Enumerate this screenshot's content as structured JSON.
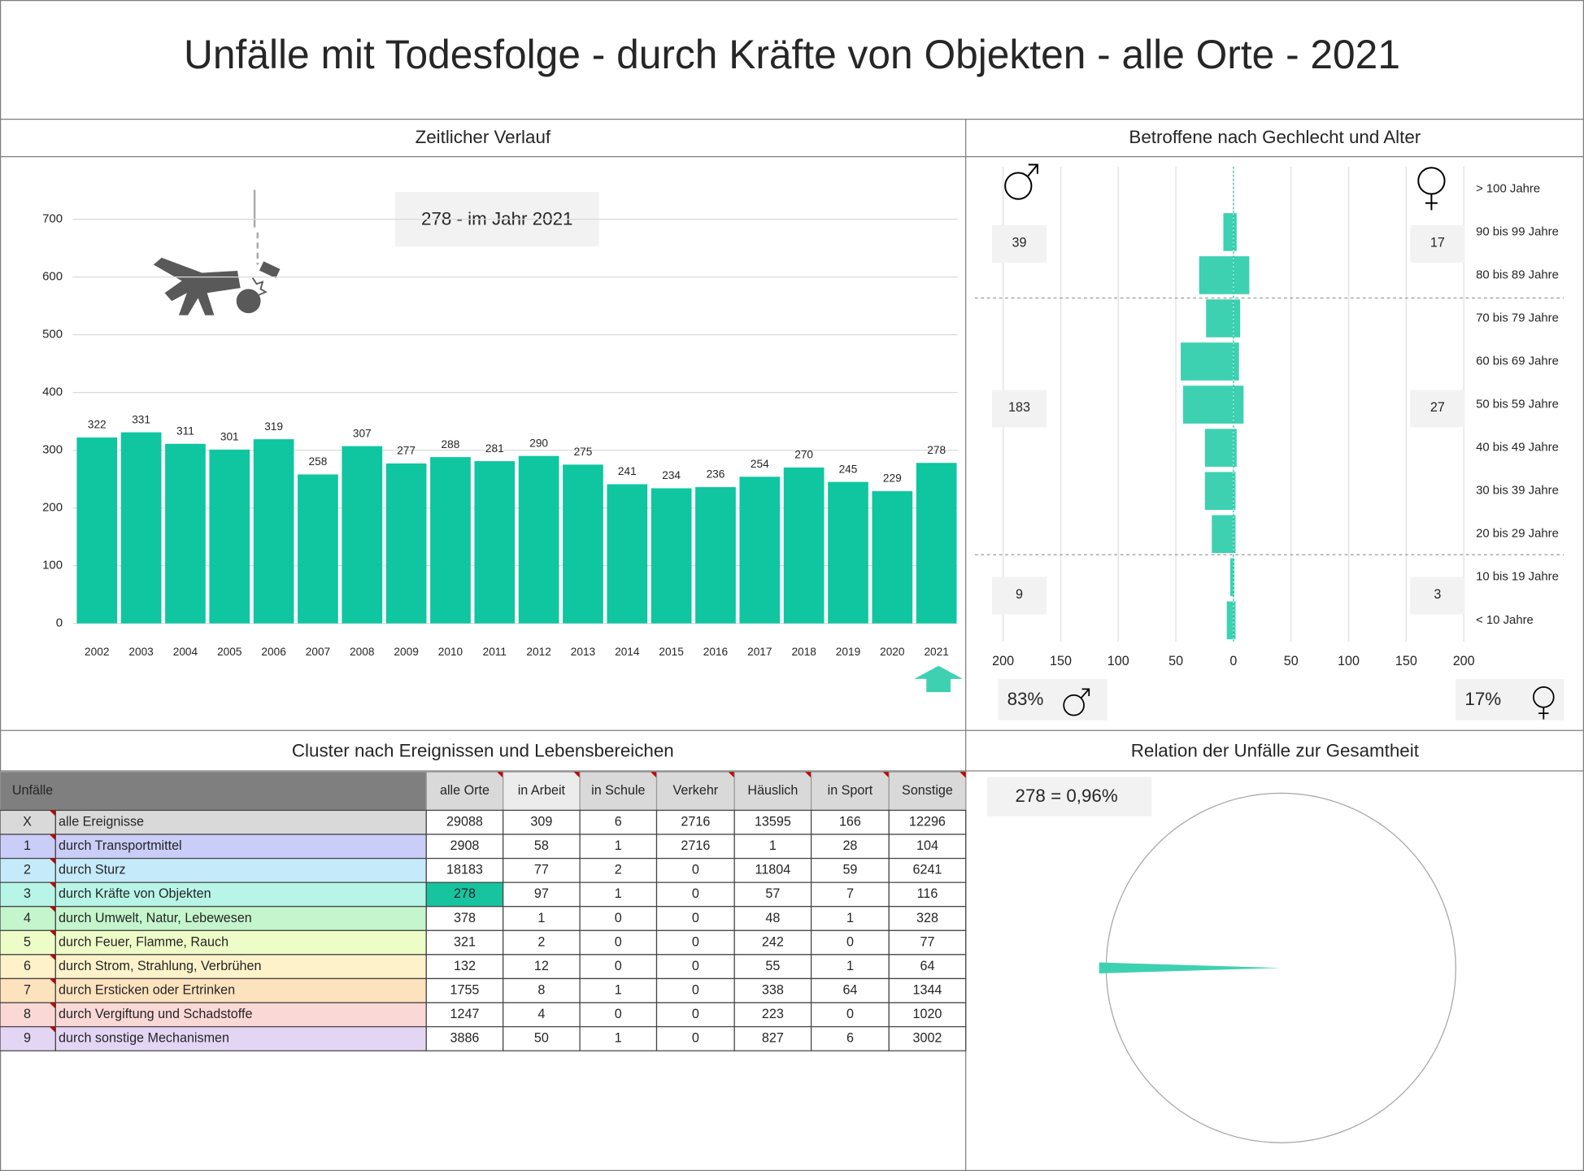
{
  "title": "Unfälle mit Todesfolge - durch Kräfte von Objekten - alle Orte - 2021",
  "chart_data": [
    {
      "type": "bar",
      "title": "Zeitlicher Verlauf",
      "annotation": "278 - im Jahr 2021",
      "color": "#0fc6a1",
      "categories": [
        "2002",
        "2003",
        "2004",
        "2005",
        "2006",
        "2007",
        "2008",
        "2009",
        "2010",
        "2011",
        "2012",
        "2013",
        "2014",
        "2015",
        "2016",
        "2017",
        "2018",
        "2019",
        "2020",
        "2021"
      ],
      "values": [
        322,
        331,
        311,
        301,
        319,
        258,
        307,
        277,
        288,
        281,
        290,
        275,
        241,
        234,
        236,
        254,
        270,
        245,
        229,
        278
      ],
      "ylim": [
        0,
        700
      ],
      "yticks": [
        0,
        100,
        200,
        300,
        400,
        500,
        600,
        700
      ],
      "grid": true
    },
    {
      "type": "pyramid",
      "title": "Betroffene nach Gechlecht und Alter",
      "categories": [
        "> 100 Jahre",
        "90 bis 99 Jahre",
        "80 bis 89 Jahre",
        "70 bis 79 Jahre",
        "60 bis 69 Jahre",
        "50 bis 59 Jahre",
        "40 bis 49 Jahre",
        "30 bis 39 Jahre",
        "20 bis 29 Jahre",
        "10 bis 19 Jahre",
        "< 10 Jahre"
      ],
      "series": [
        {
          "color": "#3dd1b1",
          "values": [
            0,
            9,
            30,
            24,
            46,
            44,
            25,
            25,
            19,
            3,
            6
          ]
        },
        {
          "color": "#3dd1b1",
          "values": [
            0,
            3,
            14,
            6,
            5,
            9,
            3,
            2,
            2,
            1,
            2
          ]
        }
      ],
      "xlim": [
        -200,
        200
      ],
      "xticks": [
        {
          "value": -200,
          "label": "200"
        },
        {
          "value": -150,
          "label": "150"
        },
        {
          "value": -100,
          "label": "100"
        },
        {
          "value": -50,
          "label": "50"
        },
        0,
        50,
        100,
        150,
        200
      ],
      "grid": true,
      "male_totals": [
        39,
        183,
        9
      ],
      "female_totals": [
        17,
        27,
        3
      ],
      "male_share": "83%",
      "female_share": "17%"
    },
    {
      "type": "pie",
      "title": "Relation der Unfälle zur Gesamtheit",
      "label": "278 =  0,96%",
      "color": "#3dd1b1"
    }
  ],
  "table": {
    "title": "Cluster nach Ereignissen und Lebensbereichen",
    "header": [
      "Unfälle",
      "alle Orte",
      "in Arbeit",
      "in Schule",
      "Verkehr",
      "Häuslich",
      "in Sport",
      "Sonstige"
    ],
    "highlight": {
      "row": 3,
      "column": 0,
      "color": "#17c4a0"
    },
    "rows": [
      {
        "code": "X",
        "label": "alle Ereignisse",
        "color": "#d9d9d9",
        "values": [
          29088,
          309,
          6,
          2716,
          13595,
          166,
          12296
        ]
      },
      {
        "code": "1",
        "label": "durch Transportmittel",
        "color": "#c9cdf7",
        "values": [
          2908,
          58,
          1,
          2716,
          1,
          28,
          104
        ]
      },
      {
        "code": "2",
        "label": "durch Sturz",
        "color": "#c5ebfa",
        "values": [
          18183,
          77,
          2,
          0,
          11804,
          59,
          6241
        ]
      },
      {
        "code": "3",
        "label": "durch Kräfte von Objekten",
        "color": "#b7f5e6",
        "values": [
          278,
          97,
          1,
          0,
          57,
          7,
          116
        ]
      },
      {
        "code": "4",
        "label": "durch Umwelt, Natur, Lebewesen",
        "color": "#c4f5cc",
        "values": [
          378,
          1,
          0,
          0,
          48,
          1,
          328
        ]
      },
      {
        "code": "5",
        "label": "durch Feuer, Flamme, Rauch",
        "color": "#eefcc7",
        "values": [
          321,
          2,
          0,
          0,
          242,
          0,
          77
        ]
      },
      {
        "code": "6",
        "label": "durch Strom, Strahlung, Verbrühen",
        "color": "#fdf2c9",
        "values": [
          132,
          12,
          0,
          0,
          55,
          1,
          64
        ]
      },
      {
        "code": "7",
        "label": "durch Ersticken oder Ertrinken",
        "color": "#fde2be",
        "values": [
          1755,
          8,
          1,
          0,
          338,
          64,
          1344
        ]
      },
      {
        "code": "8",
        "label": "durch Vergiftung und Schadstoffe",
        "color": "#fad8d6",
        "values": [
          1247,
          4,
          0,
          0,
          223,
          0,
          1020
        ]
      },
      {
        "code": "9",
        "label": "durch sonstige Mechanismen",
        "color": "#e3d6f5",
        "values": [
          3886,
          50,
          1,
          0,
          827,
          6,
          3002
        ]
      }
    ]
  }
}
